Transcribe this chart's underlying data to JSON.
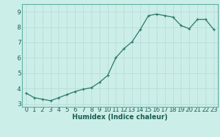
{
  "x": [
    0,
    1,
    2,
    3,
    4,
    5,
    6,
    7,
    8,
    9,
    10,
    11,
    12,
    13,
    14,
    15,
    16,
    17,
    18,
    19,
    20,
    21,
    22,
    23
  ],
  "y": [
    3.7,
    3.4,
    3.3,
    3.2,
    3.4,
    3.6,
    3.8,
    3.95,
    4.05,
    4.4,
    4.85,
    6.0,
    6.6,
    7.05,
    7.85,
    8.75,
    8.85,
    8.75,
    8.65,
    8.1,
    7.9,
    8.5,
    8.5,
    7.85
  ],
  "line_color": "#2e7d6e",
  "marker": "+",
  "marker_size": 3.5,
  "linewidth": 1.0,
  "bg_color": "#cceee8",
  "grid_color": "#b8dcd8",
  "xlabel": "Humidex (Indice chaleur)",
  "xlabel_fontsize": 7,
  "tick_fontsize": 6.5,
  "xlim": [
    -0.5,
    23.5
  ],
  "ylim": [
    2.8,
    9.5
  ],
  "yticks": [
    3,
    4,
    5,
    6,
    7,
    8,
    9
  ],
  "xticks": [
    0,
    1,
    2,
    3,
    4,
    5,
    6,
    7,
    8,
    9,
    10,
    11,
    12,
    13,
    14,
    15,
    16,
    17,
    18,
    19,
    20,
    21,
    22,
    23
  ]
}
